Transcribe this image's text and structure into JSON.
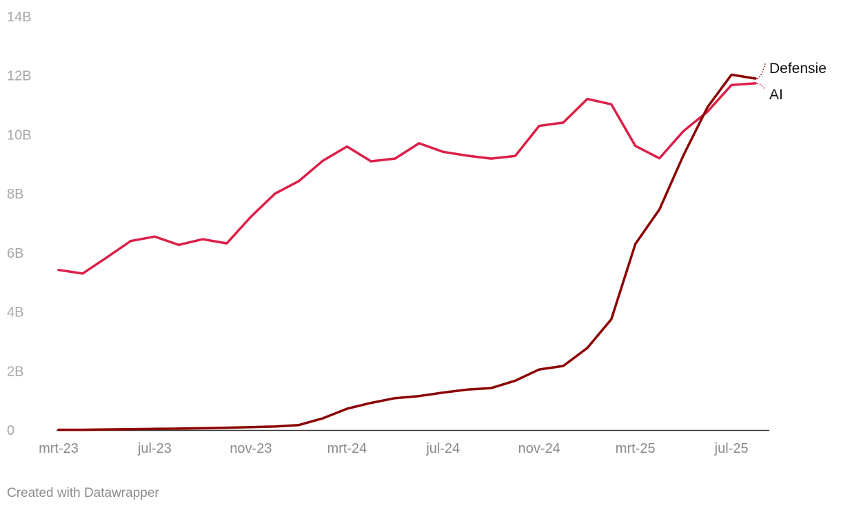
{
  "credit": "Created with Datawrapper",
  "colors": {
    "Defensie": "#8b0000",
    "AI": "#dc1f48",
    "axis": "#333333",
    "tick_text": "#a8a8a8"
  },
  "chart_data": {
    "type": "line",
    "title": "",
    "xlabel": "",
    "ylabel": "",
    "ylim": [
      0,
      14000000000
    ],
    "y_ticks": [
      0,
      2000000000,
      4000000000,
      6000000000,
      8000000000,
      10000000000,
      12000000000,
      14000000000
    ],
    "y_tick_labels": [
      "0",
      "2B",
      "4B",
      "6B",
      "8B",
      "10B",
      "12B",
      "14B"
    ],
    "x_tick_labels": [
      "mrt-23",
      "jul-23",
      "nov-23",
      "mrt-24",
      "jul-24",
      "nov-24",
      "mrt-25",
      "jul-25"
    ],
    "x_tick_dates": [
      "2023-03",
      "2023-07",
      "2023-11",
      "2024-03",
      "2024-07",
      "2024-11",
      "2025-03",
      "2025-07"
    ],
    "grid": false,
    "legend": "direct labels at line ends",
    "x": [
      "2023-03",
      "2023-04",
      "2023-05",
      "2023-06",
      "2023-07",
      "2023-08",
      "2023-09",
      "2023-10",
      "2023-11",
      "2023-12",
      "2024-01",
      "2024-02",
      "2024-03",
      "2024-04",
      "2024-05",
      "2024-06",
      "2024-07",
      "2024-08",
      "2024-09",
      "2024-10",
      "2024-11",
      "2024-12",
      "2025-01",
      "2025-02",
      "2025-03",
      "2025-04",
      "2025-05",
      "2025-06",
      "2025-07",
      "2025-08"
    ],
    "series": [
      {
        "name": "Defensie",
        "values": [
          10000000,
          10000000,
          20000000,
          30000000,
          40000000,
          50000000,
          60000000,
          80000000,
          100000000,
          120000000,
          170000000,
          400000000,
          720000000,
          920000000,
          1080000000,
          1150000000,
          1270000000,
          1370000000,
          1420000000,
          1670000000,
          2050000000,
          2170000000,
          2780000000,
          3750000000,
          6300000000,
          7470000000,
          9300000000,
          10930000000,
          12030000000,
          11900000000
        ]
      },
      {
        "name": "AI",
        "values": [
          5420000000,
          5300000000,
          5840000000,
          6400000000,
          6550000000,
          6270000000,
          6460000000,
          6320000000,
          7220000000,
          8000000000,
          8430000000,
          9120000000,
          9600000000,
          9100000000,
          9190000000,
          9710000000,
          9420000000,
          9290000000,
          9190000000,
          9280000000,
          10300000000,
          10410000000,
          11210000000,
          11030000000,
          9620000000,
          9200000000,
          10120000000,
          10780000000,
          11680000000,
          11740000000
        ]
      }
    ]
  }
}
